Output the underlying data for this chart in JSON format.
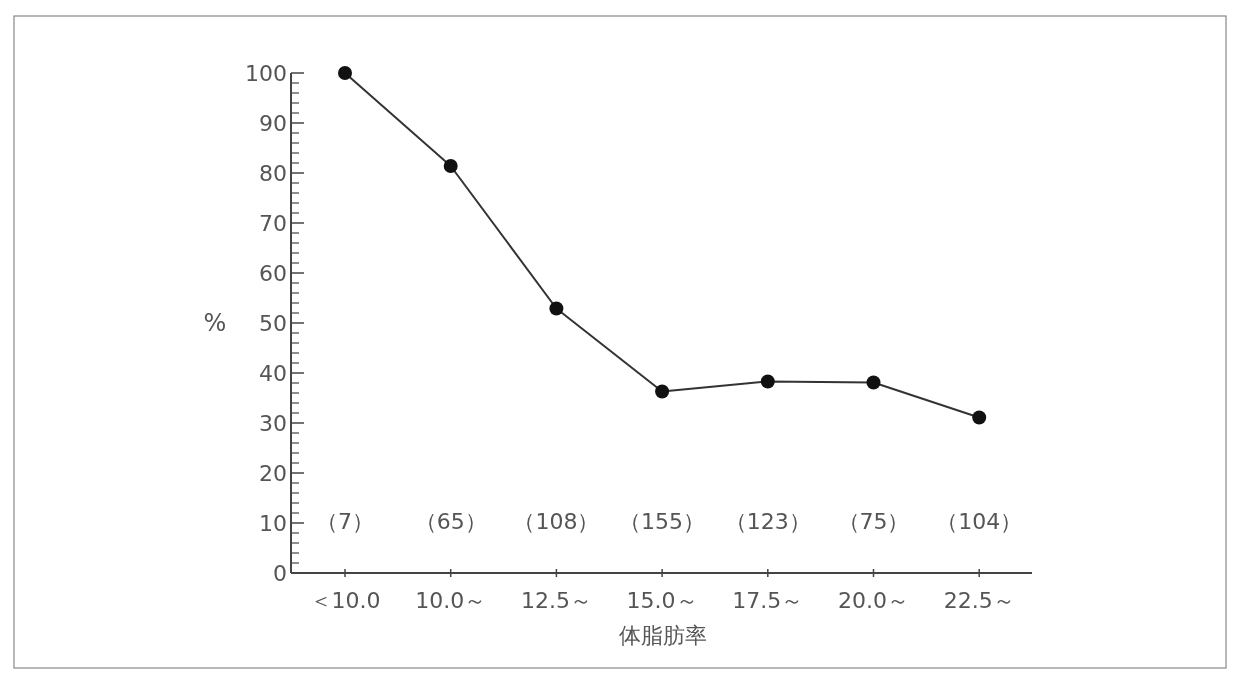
{
  "chart_data": {
    "type": "line",
    "xlabel": "体脂肪率",
    "ylabel": "%",
    "categories": [
      "＜10.0",
      "10.0～",
      "12.5～",
      "15.0～",
      "17.5～",
      "20.0～",
      "22.5～"
    ],
    "values": [
      100,
      81.4,
      52.9,
      36.3,
      38.3,
      38.1,
      31.1
    ],
    "color": "#333333",
    "marker": "circle",
    "line_style": "solid",
    "ylim": [
      0,
      100
    ],
    "yticks": [
      0,
      10,
      20,
      30,
      40,
      50,
      60,
      70,
      80,
      90,
      100
    ],
    "annotations": [
      "（7）",
      "（65）",
      "（108）",
      "（155）",
      "（123）",
      "（75）",
      "（104）"
    ]
  }
}
